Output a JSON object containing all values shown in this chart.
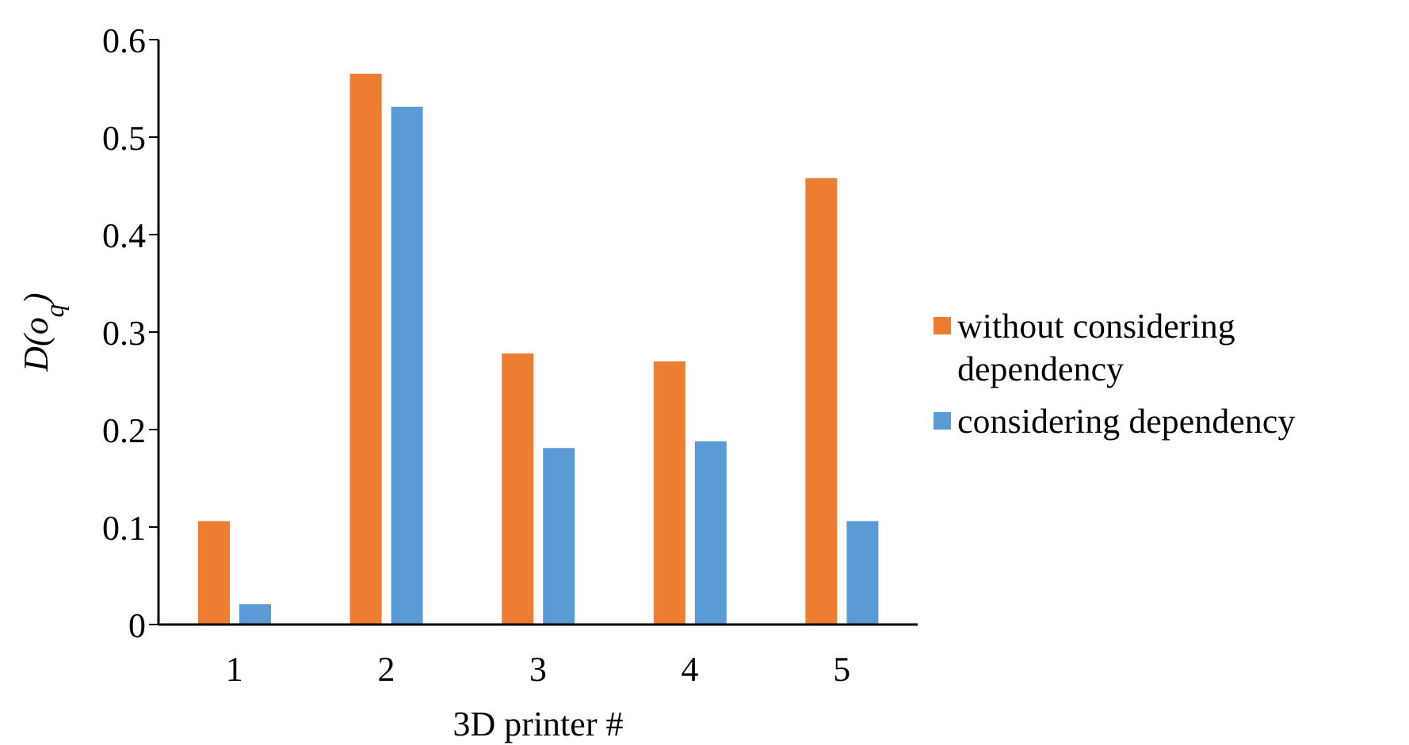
{
  "chart_data": {
    "type": "bar",
    "xlabel": "3D printer #",
    "ylabel": "D(o$_{q}$)",
    "categories": [
      "1",
      "2",
      "3",
      "4",
      "5"
    ],
    "series": [
      {
        "name": "without considering dependency",
        "color": "#ed7d31",
        "values": [
          0.106,
          0.565,
          0.278,
          0.27,
          0.458
        ]
      },
      {
        "name": "considering dependency",
        "color": "#5b9bd5",
        "values": [
          0.021,
          0.531,
          0.181,
          0.188,
          0.106
        ]
      }
    ],
    "ylim": [
      0,
      0.6
    ],
    "yticks": [
      0,
      0.1,
      0.2,
      0.3,
      0.4,
      0.5,
      0.6
    ],
    "grid": false,
    "legend": "right"
  }
}
